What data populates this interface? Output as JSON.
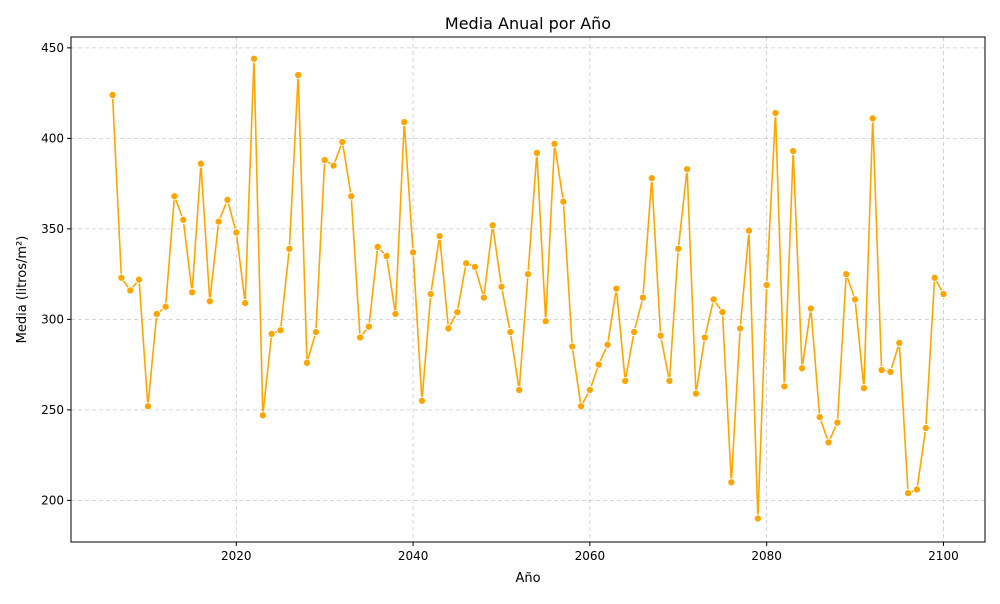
{
  "chart_data": {
    "type": "line",
    "title": "Media Anual por Año",
    "xlabel": "Año",
    "ylabel": "Media (litros/m²)",
    "xlim": [
      2001.3,
      2104.7
    ],
    "ylim": [
      177,
      456
    ],
    "xticks": [
      2020,
      2040,
      2060,
      2080,
      2100
    ],
    "yticks": [
      200,
      250,
      300,
      350,
      400,
      450
    ],
    "grid": true,
    "legend": "none",
    "series": [
      {
        "color": "#FFA500",
        "marker": "circle",
        "x": [
          2006,
          2007,
          2008,
          2009,
          2010,
          2011,
          2012,
          2013,
          2014,
          2015,
          2016,
          2017,
          2018,
          2019,
          2020,
          2021,
          2022,
          2023,
          2024,
          2025,
          2026,
          2027,
          2028,
          2029,
          2030,
          2031,
          2032,
          2033,
          2034,
          2035,
          2036,
          2037,
          2038,
          2039,
          2040,
          2041,
          2042,
          2043,
          2044,
          2045,
          2046,
          2047,
          2048,
          2049,
          2050,
          2051,
          2052,
          2053,
          2054,
          2055,
          2056,
          2057,
          2058,
          2059,
          2060,
          2061,
          2062,
          2063,
          2064,
          2065,
          2066,
          2067,
          2068,
          2069,
          2070,
          2071,
          2072,
          2073,
          2074,
          2075,
          2076,
          2077,
          2078,
          2079,
          2080,
          2081,
          2082,
          2083,
          2084,
          2085,
          2086,
          2087,
          2088,
          2089,
          2090,
          2091,
          2092,
          2093,
          2094,
          2095,
          2096,
          2097,
          2098,
          2099,
          2100
        ],
        "y": [
          424,
          323,
          316,
          322,
          252,
          303,
          307,
          368,
          355,
          315,
          386,
          310,
          354,
          366,
          348,
          309,
          444,
          247,
          292,
          294,
          339,
          435,
          276,
          293,
          388,
          385,
          398,
          368,
          290,
          296,
          340,
          335,
          303,
          409,
          337,
          255,
          314,
          346,
          295,
          304,
          331,
          329,
          312,
          352,
          318,
          293,
          261,
          325,
          392,
          299,
          397,
          365,
          285,
          252,
          261,
          275,
          286,
          317,
          266,
          293,
          312,
          378,
          291,
          266,
          339,
          383,
          259,
          290,
          311,
          304,
          210,
          295,
          349,
          190,
          319,
          414,
          263,
          393,
          273,
          306,
          246,
          232,
          243,
          325,
          311,
          262,
          411,
          272,
          271,
          287,
          204,
          206,
          240,
          323,
          314
        ]
      }
    ]
  },
  "colors": {
    "line": "#FFA500",
    "marker_edge": "#ffffff",
    "grid": "#b0b0b0",
    "axis": "#000000"
  }
}
